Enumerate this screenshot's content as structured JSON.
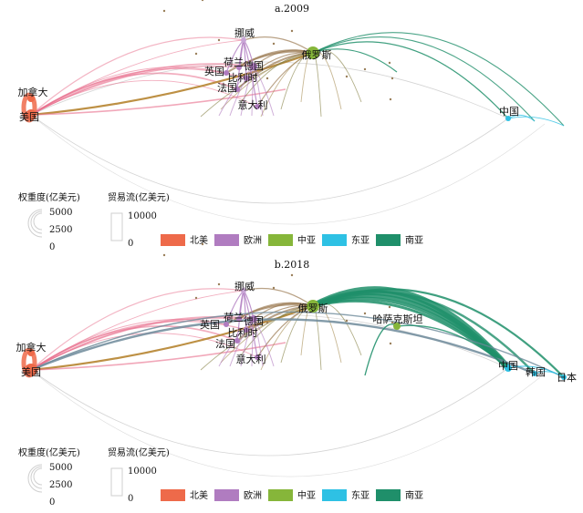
{
  "panels": [
    {
      "title": "a.2009",
      "nodes": [
        {
          "label": "挪威"
        },
        {
          "label": "荷兰"
        },
        {
          "label": "德国"
        },
        {
          "label": "英国"
        },
        {
          "label": "比利时"
        },
        {
          "label": "法国"
        },
        {
          "label": "意大利"
        },
        {
          "label": "俄罗斯"
        },
        {
          "label": "加拿大"
        },
        {
          "label": "美国"
        },
        {
          "label": "中国"
        }
      ]
    },
    {
      "title": "b.2018",
      "nodes": [
        {
          "label": "挪威"
        },
        {
          "label": "荷兰"
        },
        {
          "label": "德国"
        },
        {
          "label": "英国"
        },
        {
          "label": "比利时"
        },
        {
          "label": "法国"
        },
        {
          "label": "意大利"
        },
        {
          "label": "俄罗斯"
        },
        {
          "label": "哈萨克斯坦"
        },
        {
          "label": "加拿大"
        },
        {
          "label": "美国"
        },
        {
          "label": "中国"
        },
        {
          "label": "韩国"
        },
        {
          "label": "日本"
        }
      ]
    }
  ],
  "legend": {
    "weight_title": "权重度(亿美元)",
    "weight_values": [
      "5000",
      "2500",
      "0"
    ],
    "flow_title": "贸易流(亿美元)",
    "flow_values": [
      "10000",
      "0"
    ],
    "regions": [
      {
        "label": "北美",
        "color": "#ee6a4a"
      },
      {
        "label": "欧洲",
        "color": "#b07cc0"
      },
      {
        "label": "中亚",
        "color": "#86b63a"
      },
      {
        "label": "东亚",
        "color": "#2ec1e4"
      },
      {
        "label": "南亚",
        "color": "#1f8f6a"
      }
    ]
  }
}
